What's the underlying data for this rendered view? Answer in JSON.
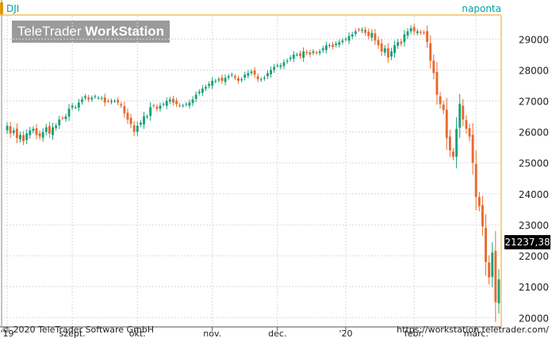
{
  "header": {
    "ticker": "DJI",
    "frequency": "naponta",
    "logo_main": "TeleTrader ",
    "logo_bold": "WorkStation"
  },
  "footer": {
    "copyright": "© 2020 TeleTrader Software GmbH",
    "url": "https://workstation.teletrader.com/"
  },
  "last_price": "21237,38",
  "colors": {
    "up": "#1aa07a",
    "down": "#e8692e",
    "grid": "#d8d8d8",
    "axis_accent": "#f0a000",
    "text": "#222222"
  },
  "chart_data": {
    "type": "candlestick",
    "title": "",
    "xlabel": "",
    "ylabel": "",
    "y_axis_side": "right",
    "ylim": [
      19700,
      29750
    ],
    "y_ticks": [
      {
        "value": 20000,
        "label": "20000"
      },
      {
        "value": 21000,
        "label": "21000"
      },
      {
        "value": 22000,
        "label": "22000"
      },
      {
        "value": 23000,
        "label": "23000"
      },
      {
        "value": 24000,
        "label": "24000"
      },
      {
        "value": 25000,
        "label": "25000"
      },
      {
        "value": 26000,
        "label": "26000"
      },
      {
        "value": 27000,
        "label": "27000"
      },
      {
        "value": 28000,
        "label": "28000"
      },
      {
        "value": 29000,
        "label": "29000"
      }
    ],
    "x_ticks": [
      {
        "index": 0,
        "label": "'19"
      },
      {
        "index": 20,
        "label": "szept."
      },
      {
        "index": 40,
        "label": "okt."
      },
      {
        "index": 63,
        "label": "nov."
      },
      {
        "index": 83,
        "label": "dec."
      },
      {
        "index": 104,
        "label": "'20"
      },
      {
        "index": 125,
        "label": "febr."
      },
      {
        "index": 144,
        "label": "márc."
      }
    ],
    "grid": true,
    "close_series": [
      26200,
      25950,
      26050,
      25800,
      25900,
      25700,
      25950,
      26050,
      26100,
      25900,
      25850,
      26000,
      26150,
      25950,
      26150,
      26200,
      26400,
      26450,
      26500,
      26750,
      26850,
      26800,
      26950,
      27050,
      27150,
      27050,
      27100,
      27150,
      27100,
      27100,
      26950,
      27000,
      27000,
      27000,
      26950,
      26850,
      26600,
      26400,
      26250,
      26000,
      26200,
      26300,
      26500,
      26500,
      26800,
      26850,
      26750,
      26850,
      26900,
      27000,
      27050,
      26950,
      26900,
      26850,
      26850,
      26900,
      26950,
      27050,
      27200,
      27300,
      27400,
      27450,
      27550,
      27650,
      27650,
      27700,
      27650,
      27750,
      27800,
      27850,
      27750,
      27650,
      27700,
      27850,
      27900,
      27950,
      27850,
      27700,
      27700,
      27750,
      27900,
      28000,
      28100,
      28150,
      28150,
      28250,
      28300,
      28400,
      28500,
      28500,
      28450,
      28600,
      28550,
      28500,
      28600,
      28550,
      28600,
      28700,
      28800,
      28800,
      28750,
      28850,
      28900,
      28950,
      29000,
      29100,
      29150,
      29250,
      29300,
      29300,
      29200,
      29100,
      29200,
      28950,
      28800,
      28600,
      28700,
      28400,
      28600,
      28800,
      28900,
      28850,
      29150,
      29250,
      29350,
      29250,
      29250,
      29200,
      29200,
      28900,
      28300,
      27900,
      27200,
      26900,
      26700,
      25800,
      25400,
      25200,
      26100,
      26900,
      26400,
      26100,
      25850,
      25000,
      23900,
      23600,
      22950,
      21800,
      21300,
      22100,
      20500,
      21237
    ]
  }
}
